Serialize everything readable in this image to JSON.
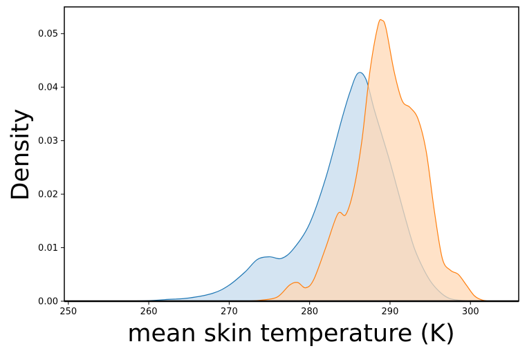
{
  "chart_data": {
    "type": "area",
    "title": "",
    "xlabel": "mean skin temperature (K)",
    "ylabel": "Density",
    "xlim": [
      249.5,
      306
    ],
    "ylim": [
      0,
      0.055
    ],
    "xticks": [
      250,
      260,
      270,
      280,
      290,
      300
    ],
    "yticks": [
      0.0,
      0.01,
      0.02,
      0.03,
      0.04,
      0.05
    ],
    "ytick_labels": [
      "0.00",
      "0.01",
      "0.02",
      "0.03",
      "0.04",
      "0.05"
    ],
    "grid": false,
    "legend": "none",
    "series": [
      {
        "color": "#1f77b4",
        "fill": "#c6dbed",
        "points": [
          [
            252,
            0.0
          ],
          [
            256,
            1e-05
          ],
          [
            260,
            0.0001
          ],
          [
            262,
            0.0003
          ],
          [
            265,
            0.0006
          ],
          [
            268,
            0.0015
          ],
          [
            270,
            0.003
          ],
          [
            272,
            0.0055
          ],
          [
            273.5,
            0.0078
          ],
          [
            275,
            0.0083
          ],
          [
            276.5,
            0.008
          ],
          [
            278,
            0.0098
          ],
          [
            280,
            0.0145
          ],
          [
            282,
            0.023
          ],
          [
            284,
            0.034
          ],
          [
            285,
            0.039
          ],
          [
            286,
            0.0426
          ],
          [
            287,
            0.0415
          ],
          [
            288,
            0.036
          ],
          [
            289,
            0.031
          ],
          [
            290,
            0.026
          ],
          [
            291,
            0.0205
          ],
          [
            292,
            0.015
          ],
          [
            293,
            0.01
          ],
          [
            294,
            0.0065
          ],
          [
            295,
            0.0038
          ],
          [
            296,
            0.002
          ],
          [
            297,
            0.0008
          ],
          [
            298,
            0.0003
          ],
          [
            300,
            0.0
          ]
        ]
      },
      {
        "color": "#ff7f0e",
        "fill": "#ffd8b5",
        "points": [
          [
            272,
            0.0
          ],
          [
            274,
            0.0002
          ],
          [
            276,
            0.0008
          ],
          [
            277.5,
            0.003
          ],
          [
            278.5,
            0.0035
          ],
          [
            279.5,
            0.0025
          ],
          [
            280.5,
            0.004
          ],
          [
            282,
            0.01
          ],
          [
            283.5,
            0.0163
          ],
          [
            284.5,
            0.0162
          ],
          [
            285.5,
            0.021
          ],
          [
            286.5,
            0.03
          ],
          [
            287.5,
            0.043
          ],
          [
            288.5,
            0.0515
          ],
          [
            289,
            0.0525
          ],
          [
            289.5,
            0.051
          ],
          [
            290.5,
            0.043
          ],
          [
            291.5,
            0.0375
          ],
          [
            292.5,
            0.0362
          ],
          [
            293.5,
            0.034
          ],
          [
            294.5,
            0.028
          ],
          [
            295.5,
            0.017
          ],
          [
            296.5,
            0.008
          ],
          [
            297.5,
            0.0058
          ],
          [
            298.5,
            0.005
          ],
          [
            299.5,
            0.003
          ],
          [
            300.5,
            0.001
          ],
          [
            301.5,
            0.0002
          ],
          [
            302.5,
            0.0
          ]
        ]
      }
    ]
  }
}
